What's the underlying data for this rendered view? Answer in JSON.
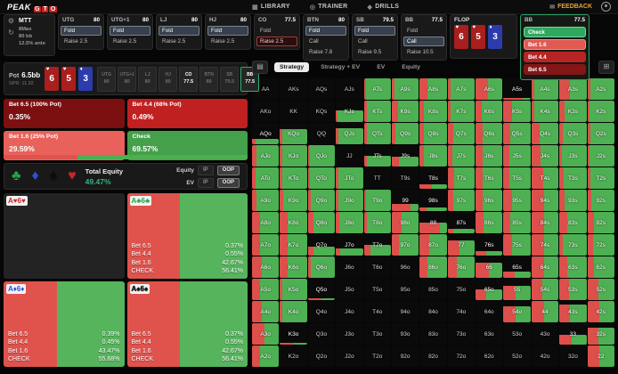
{
  "nav": {
    "logo_peak": "PEAK",
    "logo_gto": [
      "G",
      "T",
      "O"
    ],
    "items": [
      {
        "icon": "▦",
        "label": "LIBRARY"
      },
      {
        "icon": "◎",
        "label": "TRAINER"
      },
      {
        "icon": "◆",
        "label": "DRILLS"
      }
    ],
    "feedback_label": "FEEDBACK"
  },
  "game_info": {
    "title": "MTT",
    "lines": [
      "8Max",
      "80 bb",
      "12.5% ante"
    ],
    "icons": [
      "gear-icon",
      "refresh-icon"
    ]
  },
  "positions": [
    {
      "name": "UTG",
      "stack": "80",
      "actions": [
        {
          "label": "Fold",
          "sel": "dim"
        },
        {
          "label": "Raise 2.5"
        }
      ]
    },
    {
      "name": "UTG+1",
      "stack": "80",
      "actions": [
        {
          "label": "Fold",
          "sel": "dim"
        },
        {
          "label": "Raise 2.5"
        }
      ]
    },
    {
      "name": "LJ",
      "stack": "80",
      "actions": [
        {
          "label": "Fold",
          "sel": "dim"
        },
        {
          "label": "Raise 2.5"
        }
      ]
    },
    {
      "name": "HJ",
      "stack": "80",
      "actions": [
        {
          "label": "Fold",
          "sel": "dim"
        },
        {
          "label": "Raise 2.5"
        }
      ]
    },
    {
      "name": "CO",
      "stack": "77.5",
      "actions": [
        {
          "label": "Fold"
        },
        {
          "label": "Raise 2.5",
          "sel": "red"
        }
      ]
    },
    {
      "name": "BTN",
      "stack": "80",
      "actions": [
        {
          "label": "Fold",
          "sel": "dim"
        },
        {
          "label": "Call"
        },
        {
          "label": "Raise 7.8"
        }
      ]
    },
    {
      "name": "SB",
      "stack": "79.5",
      "actions": [
        {
          "label": "Fold",
          "sel": "dim"
        },
        {
          "label": "Call"
        },
        {
          "label": "Raise 9.5"
        }
      ]
    },
    {
      "name": "BB",
      "stack": "77.5",
      "actions": [
        {
          "label": "Fold"
        },
        {
          "label": "Call",
          "sel": "dim"
        },
        {
          "label": "Raise 10.5"
        }
      ]
    }
  ],
  "flop": {
    "label": "FLOP",
    "cards": [
      {
        "rank": "6",
        "suit": "h"
      },
      {
        "rank": "5",
        "suit": "h"
      },
      {
        "rank": "3",
        "suit": "d"
      }
    ]
  },
  "current_node": {
    "name": "BB",
    "stack": "77.5",
    "actions": [
      {
        "label": "Check",
        "type": "check"
      },
      {
        "label": "Bet 1.6",
        "type": "bet-small"
      },
      {
        "label": "Bet 4.4",
        "type": "bet-mid"
      },
      {
        "label": "Bet 6.5",
        "type": "bet-big"
      }
    ]
  },
  "sidebar": {
    "pot_label": "Pot",
    "pot_value": "6.5bb",
    "spr": "SPR: 11.92",
    "seats": [
      {
        "name": "UTG",
        "stack": "80",
        "state": "dim"
      },
      {
        "name": "UTG+1",
        "stack": "80",
        "state": "dim"
      },
      {
        "name": "LJ",
        "stack": "80",
        "state": "dim"
      },
      {
        "name": "HJ",
        "stack": "80",
        "state": "dim"
      },
      {
        "name": "CO",
        "stack": "77.5",
        "state": "active"
      },
      {
        "name": "BTN",
        "stack": "80",
        "state": "dim"
      },
      {
        "name": "SB",
        "stack": "79.5",
        "state": "dim"
      },
      {
        "name": "BB",
        "stack": "77.5",
        "state": "hero"
      }
    ],
    "strategy_summary": [
      {
        "label": "Bet 6.5 (100% Pot)",
        "value": "0.35%",
        "type": "bet-big"
      },
      {
        "label": "Bet 4.4 (68% Pot)",
        "value": "0.49%",
        "type": "bet-mid"
      },
      {
        "label": "Bet 1.6 (25% Pot)",
        "value": "29.59%",
        "type": "bet-small"
      },
      {
        "label": "Check",
        "value": "69.57%",
        "type": "check"
      }
    ],
    "summary_bar": {
      "red_pct": 30.43,
      "green_pct": 69.57
    },
    "equity": {
      "suits": [
        "c",
        "d",
        "s",
        "h"
      ],
      "total_label": "Total Equity",
      "total_value": "49.47%",
      "rows": [
        {
          "label": "Equity",
          "buttons": [
            "IP",
            "OOP"
          ],
          "selected": "OOP"
        },
        {
          "label": "EV",
          "buttons": [
            "IP",
            "OOP"
          ],
          "selected": "OOP"
        }
      ]
    },
    "hands": [
      {
        "rank1": "A",
        "rank2": "6",
        "suit": "h",
        "empty": true,
        "red_pct": 0,
        "rows": []
      },
      {
        "rank1": "A",
        "rank2": "6",
        "suit": "c",
        "empty": false,
        "red_pct": 43.59,
        "rows": [
          [
            "Bet 6.5",
            "0.37%"
          ],
          [
            "Bet 4.4",
            "0.55%"
          ],
          [
            "Bet 1.6",
            "42.67%"
          ],
          [
            "CHECK",
            "56.41%"
          ]
        ]
      },
      {
        "rank1": "A",
        "rank2": "6",
        "suit": "d",
        "empty": false,
        "red_pct": 44.31,
        "rows": [
          [
            "Bet 6.5",
            "0.39%"
          ],
          [
            "Bet 4.4",
            "0.45%"
          ],
          [
            "Bet 1.6",
            "43.47%"
          ],
          [
            "CHECK",
            "55.68%"
          ]
        ]
      },
      {
        "rank1": "A",
        "rank2": "6",
        "suit": "s",
        "empty": false,
        "red_pct": 43.59,
        "rows": [
          [
            "Bet 6.5",
            "0.37%"
          ],
          [
            "Bet 4.4",
            "0.55%"
          ],
          [
            "Bet 1.6",
            "42.67%"
          ],
          [
            "CHECK",
            "56.41%"
          ]
        ]
      }
    ]
  },
  "matrix": {
    "tabs": [
      {
        "label": "Strategy",
        "active": true
      },
      {
        "label": "Strategy + EV",
        "active": false
      },
      {
        "label": "EV",
        "active": false
      },
      {
        "label": "Equity",
        "active": false
      }
    ],
    "rows": [
      [
        [
          "AA",
          0,
          0
        ],
        [
          "AKs",
          0,
          0
        ],
        [
          "AQs",
          0,
          0
        ],
        [
          "AJs",
          0,
          0
        ],
        [
          "ATs",
          100,
          8
        ],
        [
          "A9s",
          100,
          10
        ],
        [
          "A8s",
          100,
          30
        ],
        [
          "A7s",
          100,
          12
        ],
        [
          "A6s",
          100,
          45
        ],
        [
          "A5s",
          8,
          70
        ],
        [
          "A4s",
          100,
          12
        ],
        [
          "A3s",
          100,
          40
        ],
        [
          "A2s",
          100,
          10
        ]
      ],
      [
        [
          "AKo",
          0,
          0
        ],
        [
          "KK",
          0,
          0
        ],
        [
          "KQs",
          0,
          0
        ],
        [
          "KJs",
          55,
          6
        ],
        [
          "KTs",
          100,
          10
        ],
        [
          "K9s",
          100,
          22
        ],
        [
          "K8s",
          100,
          15
        ],
        [
          "K7s",
          100,
          12
        ],
        [
          "K6s",
          100,
          22
        ],
        [
          "K5s",
          100,
          32
        ],
        [
          "K4s",
          100,
          12
        ],
        [
          "K3s",
          100,
          18
        ],
        [
          "K2s",
          100,
          8
        ]
      ],
      [
        [
          "AQo",
          25,
          12
        ],
        [
          "KQo",
          70,
          8
        ],
        [
          "QQ",
          0,
          0
        ],
        [
          "QJs",
          75,
          8
        ],
        [
          "QTs",
          100,
          10
        ],
        [
          "Q9s",
          100,
          15
        ],
        [
          "Q8s",
          100,
          15
        ],
        [
          "Q7s",
          100,
          22
        ],
        [
          "Q6s",
          100,
          25
        ],
        [
          "Q5s",
          100,
          25
        ],
        [
          "Q4s",
          100,
          30
        ],
        [
          "Q3s",
          100,
          12
        ],
        [
          "Q2s",
          100,
          10
        ]
      ],
      [
        [
          "AJo",
          100,
          15
        ],
        [
          "KJo",
          100,
          8
        ],
        [
          "QJo",
          100,
          8
        ],
        [
          "JJ",
          0,
          0
        ],
        [
          "JTs",
          50,
          10
        ],
        [
          "J9s",
          45,
          25
        ],
        [
          "J8s",
          100,
          15
        ],
        [
          "J7s",
          100,
          18
        ],
        [
          "J6s",
          100,
          25
        ],
        [
          "J5s",
          100,
          20
        ],
        [
          "J4s",
          100,
          35
        ],
        [
          "J3s",
          100,
          10
        ],
        [
          "J2s",
          100,
          8
        ]
      ],
      [
        [
          "ATo",
          100,
          12
        ],
        [
          "KTo",
          100,
          10
        ],
        [
          "QTo",
          100,
          8
        ],
        [
          "JTo",
          100,
          10
        ],
        [
          "TT",
          0,
          0
        ],
        [
          "T9s",
          0,
          0
        ],
        [
          "T8s",
          20,
          45
        ],
        [
          "T7s",
          100,
          25
        ],
        [
          "T6s",
          100,
          25
        ],
        [
          "T5s",
          100,
          20
        ],
        [
          "T4s",
          100,
          42
        ],
        [
          "T3s",
          100,
          15
        ],
        [
          "T2s",
          100,
          10
        ]
      ],
      [
        [
          "A9o",
          100,
          15
        ],
        [
          "K9o",
          100,
          12
        ],
        [
          "Q9o",
          100,
          10
        ],
        [
          "J9o",
          100,
          10
        ],
        [
          "T9o",
          100,
          8
        ],
        [
          "99",
          35,
          70
        ],
        [
          "98s",
          15,
          25
        ],
        [
          "97s",
          100,
          20
        ],
        [
          "96s",
          100,
          25
        ],
        [
          "95s",
          100,
          30
        ],
        [
          "94s",
          100,
          45
        ],
        [
          "93s",
          100,
          20
        ],
        [
          "92s",
          100,
          15
        ]
      ],
      [
        [
          "A8o",
          100,
          30
        ],
        [
          "K8o",
          100,
          28
        ],
        [
          "Q8o",
          100,
          22
        ],
        [
          "J8o",
          100,
          12
        ],
        [
          "T8o",
          100,
          10
        ],
        [
          "98o",
          100,
          35
        ],
        [
          "88",
          50,
          75
        ],
        [
          "87s",
          20,
          20
        ],
        [
          "86s",
          100,
          30
        ],
        [
          "85s",
          100,
          25
        ],
        [
          "84s",
          100,
          45
        ],
        [
          "83s",
          100,
          30
        ],
        [
          "82s",
          100,
          25
        ]
      ],
      [
        [
          "A7o",
          100,
          30
        ],
        [
          "K7o",
          100,
          30
        ],
        [
          "Q7o",
          40,
          20
        ],
        [
          "J7o",
          35,
          15
        ],
        [
          "T7o",
          50,
          25
        ],
        [
          "97o",
          100,
          25
        ],
        [
          "87o",
          100,
          35
        ],
        [
          "77",
          70,
          45
        ],
        [
          "76s",
          20,
          40
        ],
        [
          "75s",
          100,
          30
        ],
        [
          "74s",
          100,
          45
        ],
        [
          "73s",
          100,
          12
        ],
        [
          "72s",
          100,
          20
        ]
      ],
      [
        [
          "A6o",
          100,
          35
        ],
        [
          "K6o",
          100,
          30
        ],
        [
          "Q6o",
          100,
          10
        ],
        [
          "J6o",
          0,
          0
        ],
        [
          "T6o",
          0,
          0
        ],
        [
          "96o",
          0,
          0
        ],
        [
          "86o",
          100,
          30
        ],
        [
          "76o",
          100,
          35
        ],
        [
          "66",
          70,
          50
        ],
        [
          "65s",
          30,
          40
        ],
        [
          "64s",
          100,
          45
        ],
        [
          "63s",
          100,
          30
        ],
        [
          "62s",
          100,
          25
        ]
      ],
      [
        [
          "A5o",
          100,
          30
        ],
        [
          "K5o",
          100,
          10
        ],
        [
          "Q5o",
          10,
          50
        ],
        [
          "J5o",
          0,
          0
        ],
        [
          "T5o",
          0,
          0
        ],
        [
          "95o",
          0,
          0
        ],
        [
          "85o",
          0,
          0
        ],
        [
          "75o",
          0,
          0
        ],
        [
          "65o",
          50,
          40
        ],
        [
          "55",
          65,
          45
        ],
        [
          "54s",
          100,
          40
        ],
        [
          "53s",
          100,
          35
        ],
        [
          "52s",
          100,
          40
        ]
      ],
      [
        [
          "A4o",
          100,
          35
        ],
        [
          "K4o",
          100,
          10
        ],
        [
          "Q4o",
          0,
          0
        ],
        [
          "J4o",
          0,
          0
        ],
        [
          "T4o",
          0,
          0
        ],
        [
          "94o",
          0,
          0
        ],
        [
          "84o",
          0,
          0
        ],
        [
          "74o",
          0,
          0
        ],
        [
          "64o",
          0,
          0
        ],
        [
          "54o",
          75,
          45
        ],
        [
          "44",
          100,
          48
        ],
        [
          "43s",
          85,
          40
        ],
        [
          "42s",
          100,
          45
        ]
      ],
      [
        [
          "A3o",
          100,
          45
        ],
        [
          "K3o",
          8,
          50
        ],
        [
          "Q3o",
          0,
          0
        ],
        [
          "J3o",
          0,
          0
        ],
        [
          "T3o",
          0,
          0
        ],
        [
          "93o",
          0,
          0
        ],
        [
          "83o",
          0,
          0
        ],
        [
          "73o",
          0,
          0
        ],
        [
          "63o",
          0,
          0
        ],
        [
          "53o",
          0,
          0
        ],
        [
          "43o",
          0,
          0
        ],
        [
          "33",
          45,
          45
        ],
        [
          "32s",
          80,
          40
        ]
      ],
      [
        [
          "A2o",
          100,
          30
        ],
        [
          "K2o",
          0,
          0
        ],
        [
          "Q2o",
          0,
          0
        ],
        [
          "J2o",
          0,
          0
        ],
        [
          "T2o",
          0,
          0
        ],
        [
          "92o",
          0,
          0
        ],
        [
          "82o",
          0,
          0
        ],
        [
          "72o",
          0,
          0
        ],
        [
          "62o",
          0,
          0
        ],
        [
          "52o",
          0,
          0
        ],
        [
          "42o",
          0,
          0
        ],
        [
          "32o",
          0,
          0
        ],
        [
          "22",
          100,
          45
        ]
      ]
    ]
  },
  "colors": {
    "accent_green": "#2fae6e",
    "matrix_green": "#4db052",
    "matrix_red": "#dd4f4a",
    "bet_big": "#7c0f10",
    "bet_mid": "#c12020",
    "bet_small": "#e8625b",
    "check": "#44a04a",
    "brand_red": "#c9201d",
    "feedback_orange": "#e8a33d",
    "equity_teal": "#35b57f"
  }
}
